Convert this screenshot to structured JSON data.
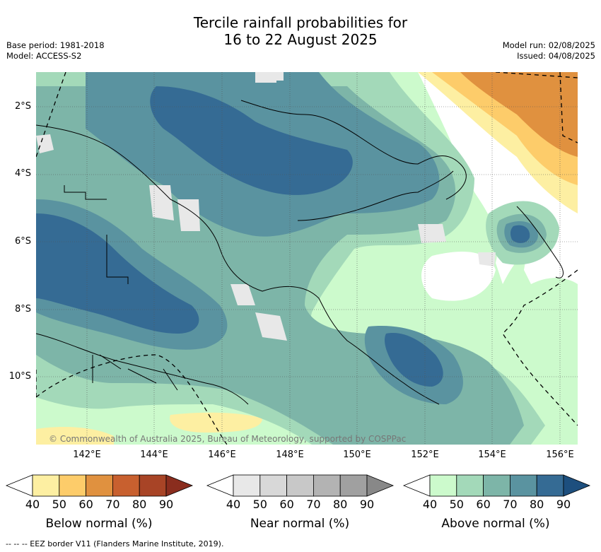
{
  "title_line1": "Tercile rainfall probabilities for",
  "title_line2": "16 to 22 August 2025",
  "base_period": "Base period: 1981-2018",
  "model": "Model: ACCESS-S2",
  "model_run": "Model run: 02/08/2025",
  "issued": "Issued: 04/08/2025",
  "lat_labels": [
    "2°S",
    "4°S",
    "6°S",
    "8°S",
    "10°S"
  ],
  "lon_labels": [
    "142°E",
    "144°E",
    "146°E",
    "148°E",
    "150°E",
    "152°E",
    "154°E",
    "156°E"
  ],
  "copyright": "© Commonwealth of Australia 2025, Bureau of Meteorology, supported by COSPPac",
  "colorbars": [
    {
      "title": "Below normal (%)",
      "ticks": [
        "40",
        "50",
        "60",
        "70",
        "80",
        "90"
      ],
      "colors": [
        "#ffffff",
        "#fdefa2",
        "#fdcc6a",
        "#e0913f",
        "#c8602f",
        "#a84426",
        "#8a2d1e"
      ]
    },
    {
      "title": "Near normal (%)",
      "ticks": [
        "40",
        "50",
        "60",
        "70",
        "80",
        "90"
      ],
      "colors": [
        "#ffffff",
        "#e8e8e8",
        "#d8d8d8",
        "#c8c8c8",
        "#b3b3b3",
        "#a0a0a0",
        "#888888"
      ]
    },
    {
      "title": "Above normal (%)",
      "ticks": [
        "40",
        "50",
        "60",
        "70",
        "80",
        "90"
      ],
      "colors": [
        "#ffffff",
        "#ccfacc",
        "#a3d9b9",
        "#7db5a8",
        "#5a93a0",
        "#356b94",
        "#1d4f7e"
      ]
    }
  ],
  "eez_note": "--  --  -- EEZ border V11 (Flanders Marine Institute, 2019)."
}
